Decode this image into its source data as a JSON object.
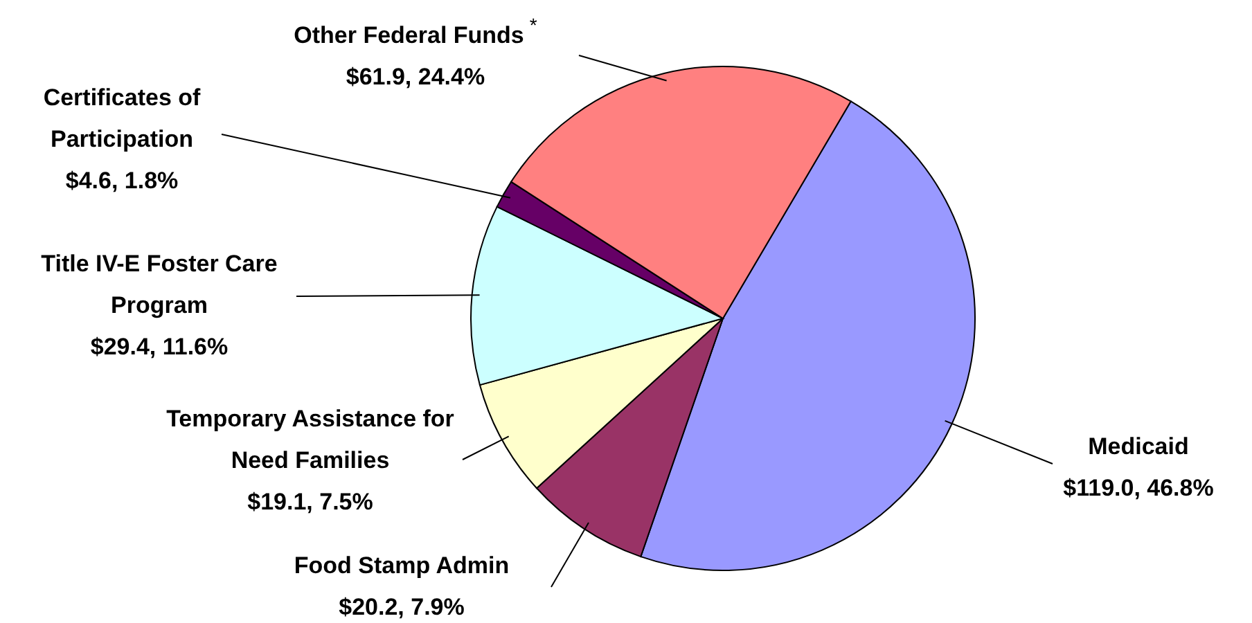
{
  "chart_data": {
    "type": "pie",
    "categories": [
      "Medicaid",
      "Food Stamp Admin",
      "Temporary Assistance for Need Families",
      "Title IV-E Foster Care Program",
      "Certificates of Participation",
      "Other Federal Funds$^{*}$"
    ],
    "values": [
      119.0,
      20.2,
      19.1,
      29.4,
      4.6,
      61.9
    ],
    "value_labels": [
      "$119.0, 46.8%",
      "$20.2, 7.9%",
      "$19.1, 7.5%",
      "$29.4, 11.6%",
      "$4.6, 1.8%",
      "$61.9, 24.4%"
    ],
    "colors": [
      "#9999ff",
      "#993366",
      "#ffffcc",
      "#ccffff",
      "#660066",
      "#ff8080"
    ]
  }
}
